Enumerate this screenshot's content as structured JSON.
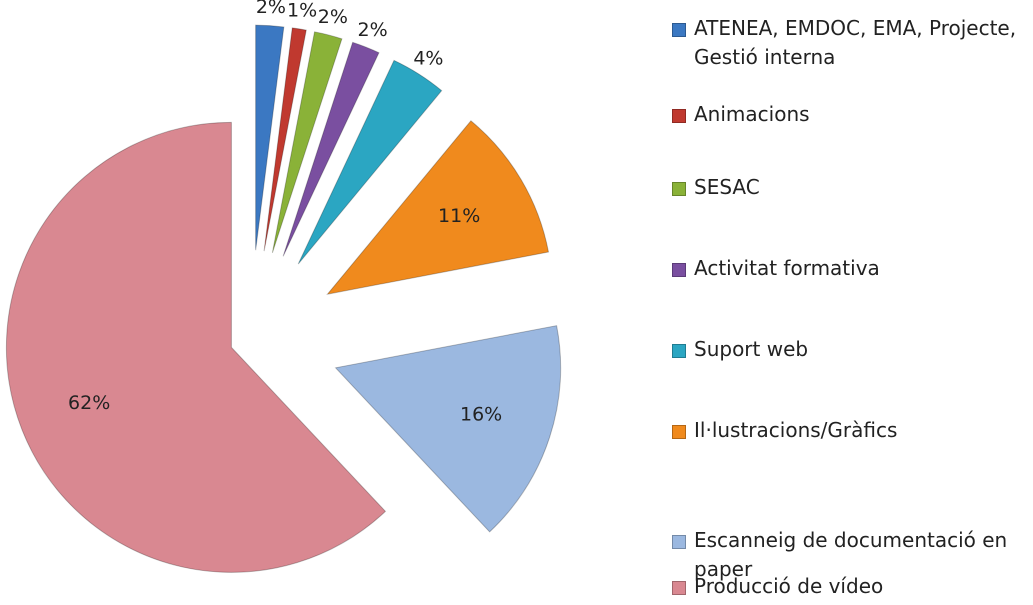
{
  "chart_data": {
    "type": "pie",
    "categories": [
      "ATENEA, EMDOC, EMA, Projecte, Gestió interna",
      "Animacions",
      "SESAC",
      "Activitat formativa",
      "Suport web",
      "Il·lustracions/Gràfics",
      "Escanneig de documentació en paper",
      "Producció de vídeo"
    ],
    "values": [
      2,
      1,
      2,
      2,
      4,
      11,
      16,
      62
    ],
    "value_labels": [
      "2%",
      "1%",
      "2%",
      "2%",
      "4%",
      "11%",
      "16%",
      "62%"
    ],
    "colors": [
      "#3b78c2",
      "#c0392f",
      "#8ab238",
      "#7a4fa0",
      "#2ba6c2",
      "#f08a1d",
      "#9bb8e0",
      "#d98891"
    ],
    "legend": "right"
  }
}
